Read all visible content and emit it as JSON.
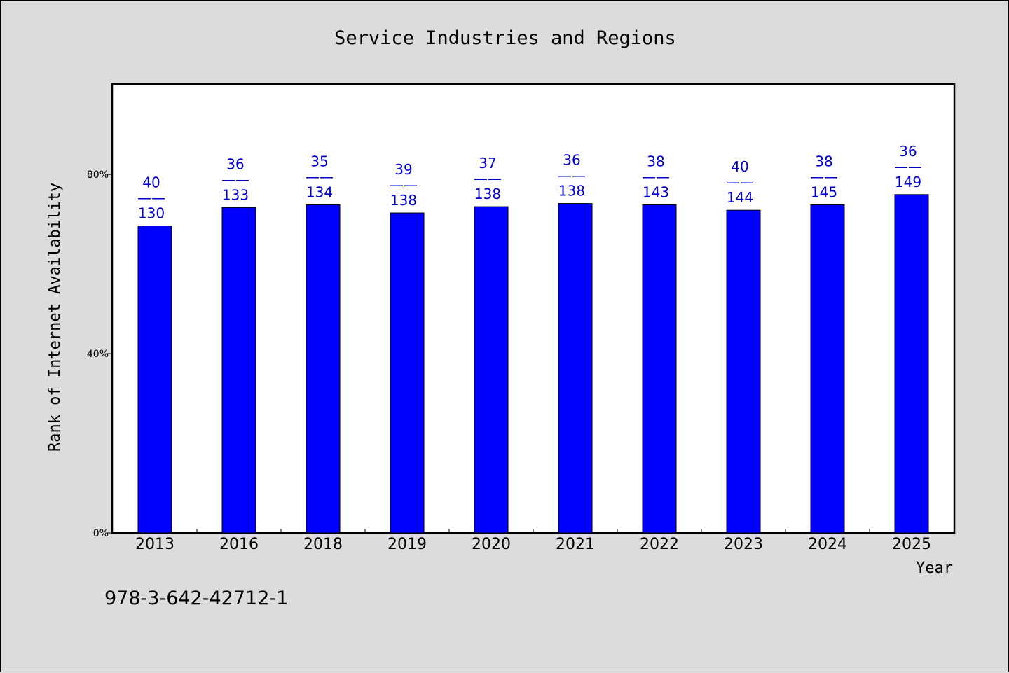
{
  "chart_data": {
    "type": "bar",
    "title": "Service Industries and Regions",
    "xlabel": "Year",
    "ylabel": "Rank of Internet Availability",
    "categories": [
      "2013",
      "2016",
      "2018",
      "2019",
      "2020",
      "2021",
      "2022",
      "2023",
      "2024",
      "2025"
    ],
    "values": [
      0.685,
      0.726,
      0.732,
      0.714,
      0.728,
      0.735,
      0.732,
      0.72,
      0.732,
      0.755
    ],
    "data_labels": [
      {
        "top": "40",
        "sep": "——",
        "bottom": "130"
      },
      {
        "top": "36",
        "sep": "——",
        "bottom": "133"
      },
      {
        "top": "35",
        "sep": "——",
        "bottom": "134"
      },
      {
        "top": "39",
        "sep": "——",
        "bottom": "138"
      },
      {
        "top": "37",
        "sep": "——",
        "bottom": "138"
      },
      {
        "top": "36",
        "sep": "——",
        "bottom": "138"
      },
      {
        "top": "38",
        "sep": "——",
        "bottom": "143"
      },
      {
        "top": "40",
        "sep": "——",
        "bottom": "144"
      },
      {
        "top": "38",
        "sep": "——",
        "bottom": "145"
      },
      {
        "top": "36",
        "sep": "——",
        "bottom": "149"
      }
    ],
    "ylim": [
      0,
      1.0
    ],
    "yticks": [
      0,
      0.4,
      0.8
    ],
    "ytick_labels": [
      "0%",
      "40%",
      "80%"
    ],
    "grid": false,
    "legend": "none",
    "colors": {
      "bar": "#0000ff",
      "label": "#0000cc",
      "plot_bg": "#ffffff",
      "page_bg": "#dcdcdc"
    }
  },
  "footer": {
    "isbn": "978-3-642-42712-1"
  }
}
